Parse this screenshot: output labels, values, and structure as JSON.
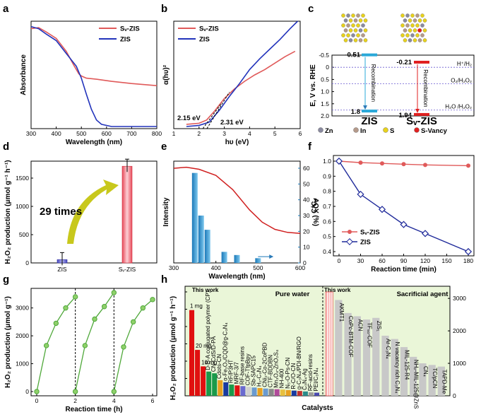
{
  "panels": {
    "a": "a",
    "b": "b",
    "c": "c",
    "d": "d",
    "e": "e",
    "f": "f",
    "g": "g",
    "h": "h"
  },
  "chart_data": [
    {
      "id": "a",
      "type": "line",
      "xlabel": "Wavelength (nm)",
      "ylabel": "Absorbance",
      "xlim": [
        300,
        800
      ],
      "xticks": [
        "300",
        "400",
        "500",
        "600",
        "700",
        "800"
      ],
      "series": [
        {
          "name": "Sv-ZIS",
          "color": "#e05a5a",
          "x": [
            300,
            330,
            360,
            400,
            440,
            470,
            490,
            500,
            520,
            560,
            620,
            700,
            800
          ],
          "y": [
            0.93,
            0.94,
            0.9,
            0.84,
            0.72,
            0.59,
            0.51,
            0.49,
            0.47,
            0.46,
            0.44,
            0.42,
            0.4
          ]
        },
        {
          "name": "ZIS",
          "color": "#2233bb",
          "x": [
            300,
            330,
            360,
            400,
            440,
            480,
            500,
            520,
            540,
            560,
            580,
            620,
            700,
            800
          ],
          "y": [
            0.95,
            0.93,
            0.88,
            0.82,
            0.7,
            0.58,
            0.47,
            0.32,
            0.18,
            0.08,
            0.04,
            0.02,
            0.02,
            0.02
          ]
        }
      ],
      "legend": [
        "Sv-ZIS",
        "ZIS"
      ]
    },
    {
      "id": "b",
      "type": "line",
      "xlabel": "hυ (eV)",
      "ylabel": "α(hυ)²",
      "xlim": [
        1,
        6
      ],
      "xticks": [
        "1",
        "2",
        "3",
        "4",
        "5",
        "6"
      ],
      "annotations": [
        "2.15 eV",
        "2.31 eV"
      ],
      "series": [
        {
          "name": "Sv-ZIS",
          "color": "#e05a5a",
          "x": [
            1.5,
            2.0,
            2.3,
            2.6,
            3.0,
            3.4,
            3.8,
            4.2,
            4.6,
            5.0,
            5.4,
            5.8
          ],
          "y": [
            0.04,
            0.05,
            0.08,
            0.16,
            0.28,
            0.37,
            0.44,
            0.5,
            0.55,
            0.61,
            0.67,
            0.72
          ]
        },
        {
          "name": "ZIS",
          "color": "#2233bb",
          "x": [
            1.5,
            2.0,
            2.4,
            2.8,
            3.2,
            3.6,
            4.0,
            4.4,
            4.8,
            5.2,
            5.6,
            5.9
          ],
          "y": [
            0.02,
            0.03,
            0.06,
            0.17,
            0.3,
            0.42,
            0.55,
            0.65,
            0.74,
            0.83,
            0.93,
            1.0
          ]
        }
      ],
      "legend": [
        "Sv-ZIS",
        "ZIS"
      ]
    },
    {
      "id": "c",
      "type": "diagram",
      "ylabel": "E, V vs. RHE",
      "ylim": [
        -0.5,
        2.0
      ],
      "yticks": [
        "-0.5",
        "0",
        "0.5",
        "1.0",
        "1.5",
        "2.0"
      ],
      "bands": [
        {
          "name": "ZIS",
          "cb": -0.51,
          "vb": 1.8,
          "cb_label": "-0.51",
          "vb_label": "1.8",
          "color": "#29a8d8"
        },
        {
          "name": "Sv-ZIS",
          "cb": -0.21,
          "vb": 1.94,
          "cb_label": "-0.21",
          "vb_label": "1.94",
          "color": "#e02020"
        }
      ],
      "levels": [
        {
          "label": "H⁺/H₂",
          "value": 0.0
        },
        {
          "label": "O₂/H₂O₂",
          "value": 0.68
        },
        {
          "label": "H₂O /H₂O₂",
          "value": 1.76
        }
      ],
      "recombination": "Recombination",
      "atoms_legend": [
        {
          "label": "Zn",
          "color": "#8a8aa0"
        },
        {
          "label": "In",
          "color": "#b59a8a"
        },
        {
          "label": "S",
          "color": "#e8d21c"
        },
        {
          "label": "S-Vancy",
          "color": "#e02020"
        }
      ]
    },
    {
      "id": "d",
      "type": "bar",
      "ylabel": "H₂O₂ production (μmol g⁻¹ h⁻¹)",
      "ylim": [
        0,
        1800
      ],
      "yticks": [
        "0",
        "500",
        "1000",
        "1500"
      ],
      "categories": [
        "ZIS",
        "Sv-ZIS"
      ],
      "values": [
        58,
        1710
      ],
      "colors": [
        "#6b6bd6",
        "#f2a0a8"
      ],
      "annotation": "29 times"
    },
    {
      "id": "e",
      "type": "bar",
      "xlabel": "Wavelength (nm)",
      "ylabel": "Intensity",
      "ylabel_right": "AQY (%)",
      "xlim": [
        300,
        600
      ],
      "xticks": [
        "300",
        "400",
        "500",
        "600"
      ],
      "yticks_right": [
        "0",
        "10",
        "20",
        "30",
        "40",
        "50",
        "60"
      ],
      "categories": [
        350,
        365,
        380,
        420,
        450,
        500
      ],
      "values": [
        57,
        30,
        21,
        7,
        5,
        3
      ],
      "absorbance_curve": {
        "x": [
          300,
          330,
          360,
          400,
          440,
          480,
          510,
          540,
          570,
          600
        ],
        "y": [
          0.93,
          0.94,
          0.92,
          0.86,
          0.72,
          0.52,
          0.4,
          0.33,
          0.3,
          0.29
        ]
      }
    },
    {
      "id": "f",
      "type": "line",
      "xlabel": "Reaction time (min)",
      "ylabel": "C/C₀",
      "xlim": [
        0,
        180
      ],
      "ylim": [
        0.4,
        1.0
      ],
      "xticks": [
        "0",
        "30",
        "60",
        "90",
        "120",
        "150",
        "180"
      ],
      "yticks": [
        "0.4",
        "0.5",
        "0.6",
        "0.7",
        "0.8",
        "0.9",
        "1.0"
      ],
      "series": [
        {
          "name": "Sv-ZIS",
          "color": "#e05a5a",
          "x": [
            0,
            30,
            60,
            90,
            120,
            180
          ],
          "y": [
            1.0,
            0.99,
            0.985,
            0.98,
            0.975,
            0.97
          ]
        },
        {
          "name": "ZIS",
          "color": "#1f2a9a",
          "x": [
            0,
            30,
            60,
            90,
            120,
            180
          ],
          "y": [
            1.0,
            0.78,
            0.68,
            0.58,
            0.52,
            0.4
          ]
        }
      ],
      "legend": [
        "Sv-ZIS",
        "ZIS"
      ]
    },
    {
      "id": "g",
      "type": "line",
      "xlabel": "Reaction time (h)",
      "ylabel": "H₂O₂ production (μmol g⁻¹)",
      "xlim": [
        0,
        6
      ],
      "ylim": [
        0,
        3500
      ],
      "xticks": [
        "0",
        "2",
        "4",
        "6"
      ],
      "yticks": [
        "0",
        "1000",
        "2000",
        "3000"
      ],
      "cycle_lines": [
        2,
        4
      ],
      "series": [
        {
          "name": "Sv-ZIS",
          "color": "#4fa83a",
          "x": [
            0,
            0.5,
            1,
            1.5,
            2,
            2,
            2.5,
            3,
            3.5,
            4,
            4,
            4.5,
            5,
            5.5,
            6
          ],
          "y": [
            0,
            1650,
            2450,
            3000,
            3400,
            0,
            1650,
            2600,
            3050,
            3550,
            0,
            1600,
            2500,
            3000,
            3300
          ]
        }
      ]
    },
    {
      "id": "h",
      "type": "bar",
      "xlabel": "Catalysts",
      "ylabel": "H₂O₂ production (μmol g⁻¹ h⁻¹)",
      "ylim": [
        0,
        3200
      ],
      "yticks": [
        "0",
        "1000",
        "2000",
        "3000"
      ],
      "section_labels": [
        "Pure water",
        "Sacrificial agent"
      ],
      "this_work": "This work",
      "pure_water": {
        "ymax": 6000,
        "labels": [
          "1 mg",
          "20 mg",
          "10 mg",
          "D-B-A conjugated polymer (CP)",
          "CN-CdS/D-PA",
          "Cdots-CN",
          "α-Fe₂O₃/CQD@g-C₃N₄",
          "RF/P3HT",
          "MRF-3/7",
          "RF-base resins",
          "COF-TfpBpy",
          "Sb-SAPC15",
          "H₂-C₃N₄",
          "CNi₂-Co-2CoPBD",
          "CTF-BDDBN",
          "Mn₃O₄-ZnO₂S₄",
          "NH-400",
          "N₅-O-Ps-CN",
          "R-C/O-CN",
          "g-C₃N₄/PDI-BN/RGO",
          "C₃N₄-Ag",
          "RF-acid-resins",
          "PEI/C₃N₄"
        ],
        "values": [
          4950,
          2650,
          1700,
          1400,
          1300,
          900,
          780,
          650,
          600,
          560,
          520,
          480,
          450,
          420,
          400,
          380,
          360,
          330,
          300,
          280,
          250,
          200,
          180
        ],
        "colors": [
          "#e01010",
          "#e01010",
          "#e01010",
          "#1a9a4a",
          "#1a9a4a",
          "#e8a020",
          "#1a3aa0",
          "#1a9a4a",
          "#e01010",
          "#6a6ad0",
          "#d0d0d0",
          "#6a9ad0",
          "#e8a020",
          "#6a9ad0",
          "#888888",
          "#b04a9a",
          "#e8c040",
          "#e8a020",
          "#1a3aa0",
          "#c03030",
          "#2a8a8a",
          "#9a9a9a",
          "#4a4ab0"
        ]
      },
      "sacrificial": {
        "ymax": 3200,
        "labels": [
          "",
          "AKMT1",
          "CoPc-BTM-COF",
          "ACN",
          "TF₅₀-COF",
          "ZIS₁",
          "Ar-C₃N₄",
          "N vacancy rich C₃N₄",
          "MIL-125-R4",
          "NH₂-MIL-125@ZnS",
          "CN₄",
          "TC/pCN",
          "TAPD-Me"
        ],
        "values": [
          3200,
          2950,
          2550,
          2450,
          2350,
          2400,
          1850,
          1750,
          1500,
          1200,
          1000,
          950,
          900
        ],
        "colors": [
          "#f7a0a0",
          "#c8c8c8",
          "#c8c8c8",
          "#c8c8c8",
          "#c8c8c8",
          "#c8c8c8",
          "#c8c8c8",
          "#c8c8c8",
          "#c8c8c8",
          "#c8c8c8",
          "#c8c8c8",
          "#c8c8c8",
          "#c8c8c8"
        ]
      }
    }
  ]
}
